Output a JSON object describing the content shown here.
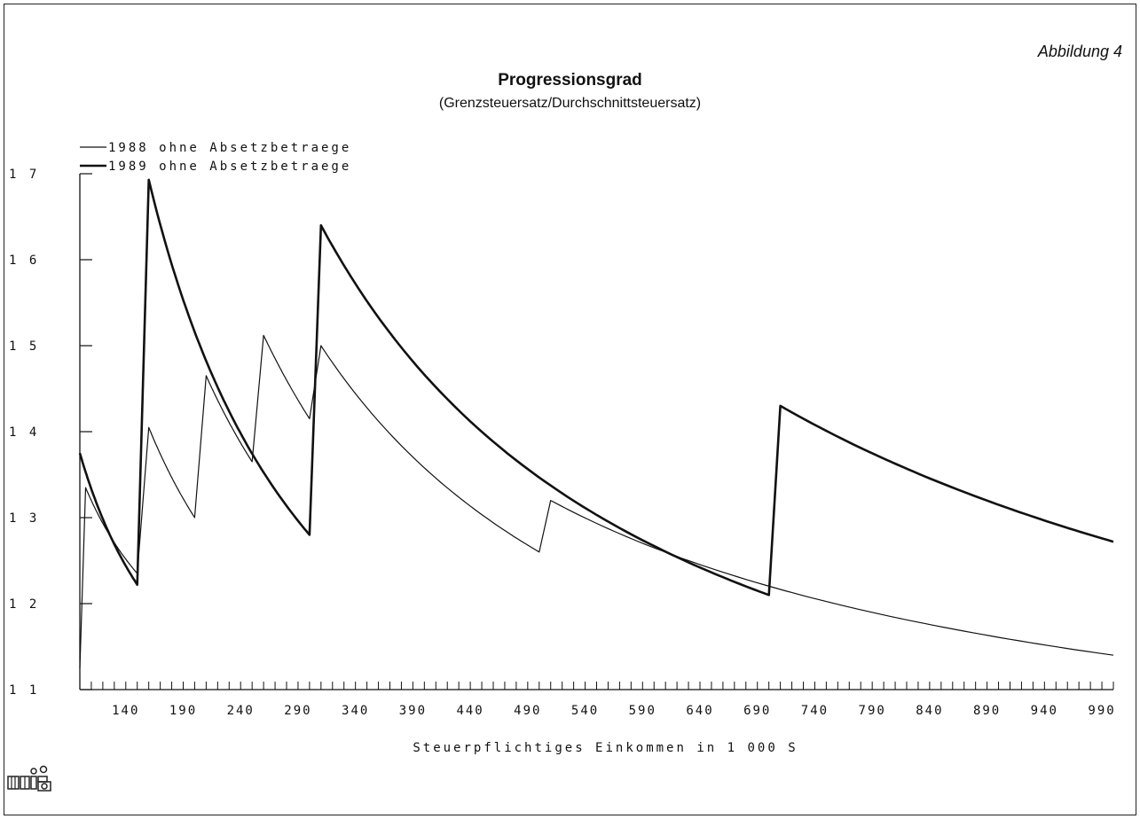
{
  "figure_label": "Abbildung 4",
  "chart_data": {
    "type": "line",
    "title": "Progressionsgrad",
    "subtitle": "(Grenzsteuersatz/Durchschnittsteuersatz)",
    "xlabel": "Steuerpflichtiges Einkommen in 1 000 S",
    "ylabel": "",
    "xlim": [
      100,
      1000
    ],
    "ylim": [
      1.1,
      1.7
    ],
    "x_ticks": [
      140,
      190,
      240,
      290,
      340,
      390,
      440,
      490,
      540,
      590,
      640,
      690,
      740,
      790,
      840,
      890,
      940,
      990
    ],
    "y_ticks": [
      "1 1",
      "1 2",
      "1 3",
      "1 4",
      "1 5",
      "1 6",
      "1 7"
    ],
    "y_tick_values": [
      1.1,
      1.2,
      1.3,
      1.4,
      1.5,
      1.6,
      1.7
    ],
    "legend_position": "top-left",
    "grid": false,
    "series": [
      {
        "name": "1988 ohne Absetzbetraege",
        "weight": "thin",
        "segments": [
          [
            [
              100,
              1.125
            ],
            [
              105,
              1.335
            ]
          ],
          [
            [
              105,
              1.335
            ],
            [
              150,
              1.235
            ]
          ],
          [
            [
              150,
              1.235
            ],
            [
              160,
              1.405
            ]
          ],
          [
            [
              160,
              1.405
            ],
            [
              200,
              1.3
            ]
          ],
          [
            [
              200,
              1.3
            ],
            [
              210,
              1.465
            ]
          ],
          [
            [
              210,
              1.465
            ],
            [
              250,
              1.365
            ]
          ],
          [
            [
              250,
              1.365
            ],
            [
              260,
              1.512
            ]
          ],
          [
            [
              260,
              1.512
            ],
            [
              300,
              1.415
            ]
          ],
          [
            [
              300,
              1.415
            ],
            [
              310,
              1.5
            ]
          ],
          [
            [
              310,
              1.5
            ],
            [
              500,
              1.26
            ]
          ],
          [
            [
              500,
              1.26
            ],
            [
              510,
              1.32
            ]
          ],
          [
            [
              510,
              1.32
            ],
            [
              1000,
              1.14
            ]
          ]
        ]
      },
      {
        "name": "1989 ohne Absetzbetraege",
        "weight": "thick",
        "segments": [
          [
            [
              100,
              1.375
            ],
            [
              150,
              1.222
            ]
          ],
          [
            [
              150,
              1.222
            ],
            [
              160,
              1.693
            ]
          ],
          [
            [
              160,
              1.693
            ],
            [
              300,
              1.28
            ]
          ],
          [
            [
              300,
              1.28
            ],
            [
              310,
              1.64
            ]
          ],
          [
            [
              310,
              1.64
            ],
            [
              700,
              1.21
            ]
          ],
          [
            [
              700,
              1.21
            ],
            [
              710,
              1.43
            ]
          ],
          [
            [
              710,
              1.43
            ],
            [
              1000,
              1.272
            ]
          ]
        ]
      }
    ]
  }
}
